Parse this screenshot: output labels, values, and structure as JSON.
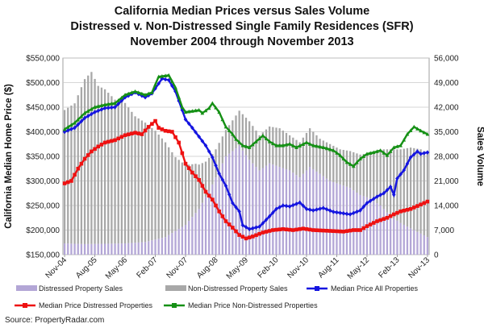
{
  "chart_data": {
    "type": "bar+line",
    "title": [
      "California Median Prices versus Sales Volume",
      "Distressed v. Non-Distressed Single Family Residences (SFR)",
      "November 2004 through November 2013"
    ],
    "y_left_label": "California Median Home Price ($)",
    "y_right_label": "Sales Volume",
    "y_left_range": [
      150000,
      550000
    ],
    "y_right_range": [
      0,
      56000
    ],
    "y_left_ticks": [
      "$150,000",
      "$200,000",
      "$250,000",
      "$300,000",
      "$350,000",
      "$400,000",
      "$450,000",
      "$500,000",
      "$550,000"
    ],
    "y_right_ticks": [
      "0",
      "7,000",
      "14,000",
      "21,000",
      "28,000",
      "35,000",
      "42,000",
      "49,000",
      "56,000"
    ],
    "x_ticks": [
      "Nov-04",
      "Aug-05",
      "May-06",
      "Feb-07",
      "Nov-07",
      "Aug-08",
      "May-09",
      "Feb-10",
      "Nov-10",
      "Aug-11",
      "May-12",
      "Feb-13",
      "Nov-13"
    ],
    "x_tick_month_index": [
      0,
      9,
      18,
      27,
      36,
      45,
      54,
      63,
      72,
      81,
      90,
      99,
      108
    ],
    "grid": true,
    "legend_position": "bottom",
    "series": [
      {
        "name": "Distressed Property Sales",
        "kind": "bar",
        "axis": "right",
        "color": "#b3a6d6",
        "keyframes": [
          [
            0,
            3200
          ],
          [
            6,
            3000
          ],
          [
            12,
            3100
          ],
          [
            18,
            3200
          ],
          [
            24,
            3600
          ],
          [
            30,
            5000
          ],
          [
            36,
            8500
          ],
          [
            40,
            13000
          ],
          [
            44,
            20000
          ],
          [
            48,
            28000
          ],
          [
            52,
            31000
          ],
          [
            55,
            27000
          ],
          [
            58,
            24000
          ],
          [
            61,
            26000
          ],
          [
            64,
            25000
          ],
          [
            67,
            24000
          ],
          [
            70,
            22000
          ],
          [
            73,
            25000
          ],
          [
            76,
            23000
          ],
          [
            79,
            21000
          ],
          [
            82,
            20000
          ],
          [
            85,
            19000
          ],
          [
            88,
            17000
          ],
          [
            91,
            16000
          ],
          [
            94,
            14000
          ],
          [
            97,
            11000
          ],
          [
            100,
            9000
          ],
          [
            104,
            7000
          ],
          [
            108,
            5000
          ]
        ]
      },
      {
        "name": "Non-Distressed Property Sales",
        "kind": "bar",
        "axis": "right",
        "color": "#a8a8a8",
        "keyframes": [
          [
            0,
            38000
          ],
          [
            3,
            40000
          ],
          [
            6,
            47000
          ],
          [
            8,
            49000
          ],
          [
            10,
            45000
          ],
          [
            12,
            44000
          ],
          [
            15,
            41000
          ],
          [
            18,
            40000
          ],
          [
            21,
            36000
          ],
          [
            24,
            34000
          ],
          [
            27,
            31000
          ],
          [
            30,
            27000
          ],
          [
            33,
            21000
          ],
          [
            36,
            17000
          ],
          [
            39,
            14000
          ],
          [
            42,
            10000
          ],
          [
            45,
            8000
          ],
          [
            48,
            7500
          ],
          [
            52,
            10000
          ],
          [
            55,
            11000
          ],
          [
            58,
            10000
          ],
          [
            61,
            10500
          ],
          [
            64,
            11000
          ],
          [
            67,
            10000
          ],
          [
            70,
            10000
          ],
          [
            73,
            11000
          ],
          [
            76,
            10000
          ],
          [
            79,
            10500
          ],
          [
            82,
            10000
          ],
          [
            85,
            10500
          ],
          [
            88,
            11500
          ],
          [
            91,
            13000
          ],
          [
            94,
            16000
          ],
          [
            97,
            19000
          ],
          [
            100,
            21000
          ],
          [
            103,
            23000
          ],
          [
            106,
            24000
          ],
          [
            108,
            24000
          ]
        ]
      },
      {
        "name": "Median Price All Properties",
        "kind": "line",
        "axis": "left",
        "color": "#1515e0",
        "keyframes": [
          [
            0,
            400000
          ],
          [
            3,
            408000
          ],
          [
            6,
            428000
          ],
          [
            9,
            440000
          ],
          [
            12,
            448000
          ],
          [
            15,
            450000
          ],
          [
            18,
            470000
          ],
          [
            21,
            480000
          ],
          [
            24,
            470000
          ],
          [
            26,
            478000
          ],
          [
            29,
            508000
          ],
          [
            31,
            505000
          ],
          [
            33,
            482000
          ],
          [
            36,
            425000
          ],
          [
            38,
            408000
          ],
          [
            40,
            390000
          ],
          [
            42,
            372000
          ],
          [
            44,
            348000
          ],
          [
            46,
            315000
          ],
          [
            48,
            290000
          ],
          [
            50,
            255000
          ],
          [
            52,
            238000
          ],
          [
            53,
            210000
          ],
          [
            55,
            202000
          ],
          [
            58,
            207000
          ],
          [
            61,
            228000
          ],
          [
            63,
            243000
          ],
          [
            65,
            250000
          ],
          [
            67,
            248000
          ],
          [
            70,
            256000
          ],
          [
            72,
            243000
          ],
          [
            74,
            240000
          ],
          [
            77,
            245000
          ],
          [
            80,
            237000
          ],
          [
            82,
            235000
          ],
          [
            85,
            232000
          ],
          [
            88,
            240000
          ],
          [
            90,
            255000
          ],
          [
            93,
            268000
          ],
          [
            95,
            275000
          ],
          [
            97,
            288000
          ],
          [
            98,
            272000
          ],
          [
            99,
            305000
          ],
          [
            101,
            322000
          ],
          [
            103,
            348000
          ],
          [
            105,
            360000
          ],
          [
            106,
            355000
          ],
          [
            108,
            358000
          ]
        ]
      },
      {
        "name": "Median Price Distressed Properties",
        "kind": "line",
        "axis": "left",
        "color": "#ee1111",
        "keyframes": [
          [
            0,
            295000
          ],
          [
            2,
            300000
          ],
          [
            4,
            325000
          ],
          [
            6,
            345000
          ],
          [
            8,
            360000
          ],
          [
            10,
            370000
          ],
          [
            12,
            378000
          ],
          [
            15,
            383000
          ],
          [
            18,
            393000
          ],
          [
            21,
            398000
          ],
          [
            23,
            395000
          ],
          [
            25,
            410000
          ],
          [
            27,
            422000
          ],
          [
            28,
            408000
          ],
          [
            30,
            402000
          ],
          [
            32,
            400000
          ],
          [
            34,
            378000
          ],
          [
            36,
            335000
          ],
          [
            38,
            317000
          ],
          [
            40,
            302000
          ],
          [
            42,
            278000
          ],
          [
            44,
            262000
          ],
          [
            46,
            238000
          ],
          [
            48,
            218000
          ],
          [
            50,
            205000
          ],
          [
            52,
            190000
          ],
          [
            54,
            183000
          ],
          [
            56,
            187000
          ],
          [
            59,
            195000
          ],
          [
            62,
            200000
          ],
          [
            65,
            202000
          ],
          [
            68,
            200000
          ],
          [
            71,
            203000
          ],
          [
            74,
            200000
          ],
          [
            77,
            199000
          ],
          [
            80,
            198000
          ],
          [
            83,
            197000
          ],
          [
            86,
            200000
          ],
          [
            88,
            200000
          ],
          [
            90,
            208000
          ],
          [
            93,
            218000
          ],
          [
            96,
            225000
          ],
          [
            98,
            232000
          ],
          [
            100,
            238000
          ],
          [
            103,
            243000
          ],
          [
            106,
            252000
          ],
          [
            108,
            258000
          ]
        ]
      },
      {
        "name": "Median Price Non-Distressed Properties",
        "kind": "line",
        "axis": "left",
        "color": "#159015",
        "keyframes": [
          [
            0,
            405000
          ],
          [
            3,
            418000
          ],
          [
            6,
            438000
          ],
          [
            9,
            450000
          ],
          [
            12,
            455000
          ],
          [
            15,
            458000
          ],
          [
            18,
            475000
          ],
          [
            21,
            482000
          ],
          [
            24,
            475000
          ],
          [
            26,
            480000
          ],
          [
            28,
            512000
          ],
          [
            31,
            515000
          ],
          [
            33,
            490000
          ],
          [
            35,
            450000
          ],
          [
            36,
            440000
          ],
          [
            38,
            442000
          ],
          [
            40,
            444000
          ],
          [
            41,
            438000
          ],
          [
            43,
            448000
          ],
          [
            44,
            458000
          ],
          [
            46,
            440000
          ],
          [
            48,
            410000
          ],
          [
            50,
            395000
          ],
          [
            51,
            385000
          ],
          [
            53,
            372000
          ],
          [
            55,
            368000
          ],
          [
            57,
            380000
          ],
          [
            59,
            392000
          ],
          [
            61,
            380000
          ],
          [
            63,
            372000
          ],
          [
            65,
            372000
          ],
          [
            67,
            375000
          ],
          [
            69,
            368000
          ],
          [
            72,
            378000
          ],
          [
            74,
            372000
          ],
          [
            77,
            368000
          ],
          [
            80,
            362000
          ],
          [
            82,
            352000
          ],
          [
            84,
            338000
          ],
          [
            86,
            330000
          ],
          [
            88,
            345000
          ],
          [
            90,
            355000
          ],
          [
            92,
            358000
          ],
          [
            94,
            362000
          ],
          [
            96,
            352000
          ],
          [
            98,
            368000
          ],
          [
            100,
            372000
          ],
          [
            102,
            395000
          ],
          [
            104,
            410000
          ],
          [
            106,
            402000
          ],
          [
            108,
            395000
          ]
        ]
      }
    ],
    "source": "Source: PropertyRadar.com"
  }
}
